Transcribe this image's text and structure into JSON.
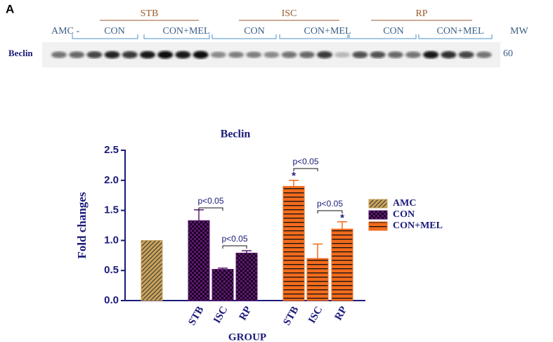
{
  "panel_label": "A",
  "blot": {
    "groups": [
      "STB",
      "ISC",
      "RP"
    ],
    "lanes": [
      "AMC -",
      "CON",
      "CON+MEL",
      "CON",
      "CON+MEL",
      "CON",
      "CON+MEL"
    ],
    "protein": "Beclin",
    "mw_header": "MW",
    "mw": 60
  },
  "chart_data": {
    "type": "bar",
    "title": "Beclin",
    "x_label": "GROUP",
    "y_label": "Fold changes",
    "categories": [
      null,
      "STB",
      "ISC",
      "RP",
      "STB",
      "ISC",
      "RP"
    ],
    "series": [
      {
        "name": "AMC",
        "color": "#c9a25a",
        "values": [
          1.0,
          null,
          null,
          null,
          null,
          null,
          null
        ],
        "errors": [
          null,
          null,
          null,
          null,
          null,
          null,
          null
        ]
      },
      {
        "name": "CON",
        "color": "#5b1a6e",
        "values": [
          null,
          1.33,
          0.52,
          0.79,
          null,
          null,
          null
        ],
        "errors": [
          null,
          0.18,
          0.02,
          0.04,
          null,
          null,
          null
        ]
      },
      {
        "name": "CON+MEL",
        "color": "#f26b1d",
        "values": [
          null,
          null,
          null,
          null,
          1.9,
          0.7,
          1.19
        ],
        "errors": [
          null,
          null,
          null,
          null,
          0.1,
          0.24,
          0.12
        ]
      }
    ],
    "ylim": [
      0,
      2.5
    ],
    "yticks": [
      {
        "value": 0,
        "label": "0.0"
      },
      {
        "value": 0.5,
        "label": "0.5"
      },
      {
        "value": 1,
        "label": "1.0"
      },
      {
        "value": 1.5,
        "label": "1.5"
      },
      {
        "value": 2,
        "label": "2.0"
      },
      {
        "value": 2.5,
        "label": "2.5"
      }
    ],
    "annotations": [
      "p<0.05",
      "p<0.05",
      "p<0.05",
      "p<0.05",
      "*",
      "*"
    ],
    "legend": "right"
  }
}
